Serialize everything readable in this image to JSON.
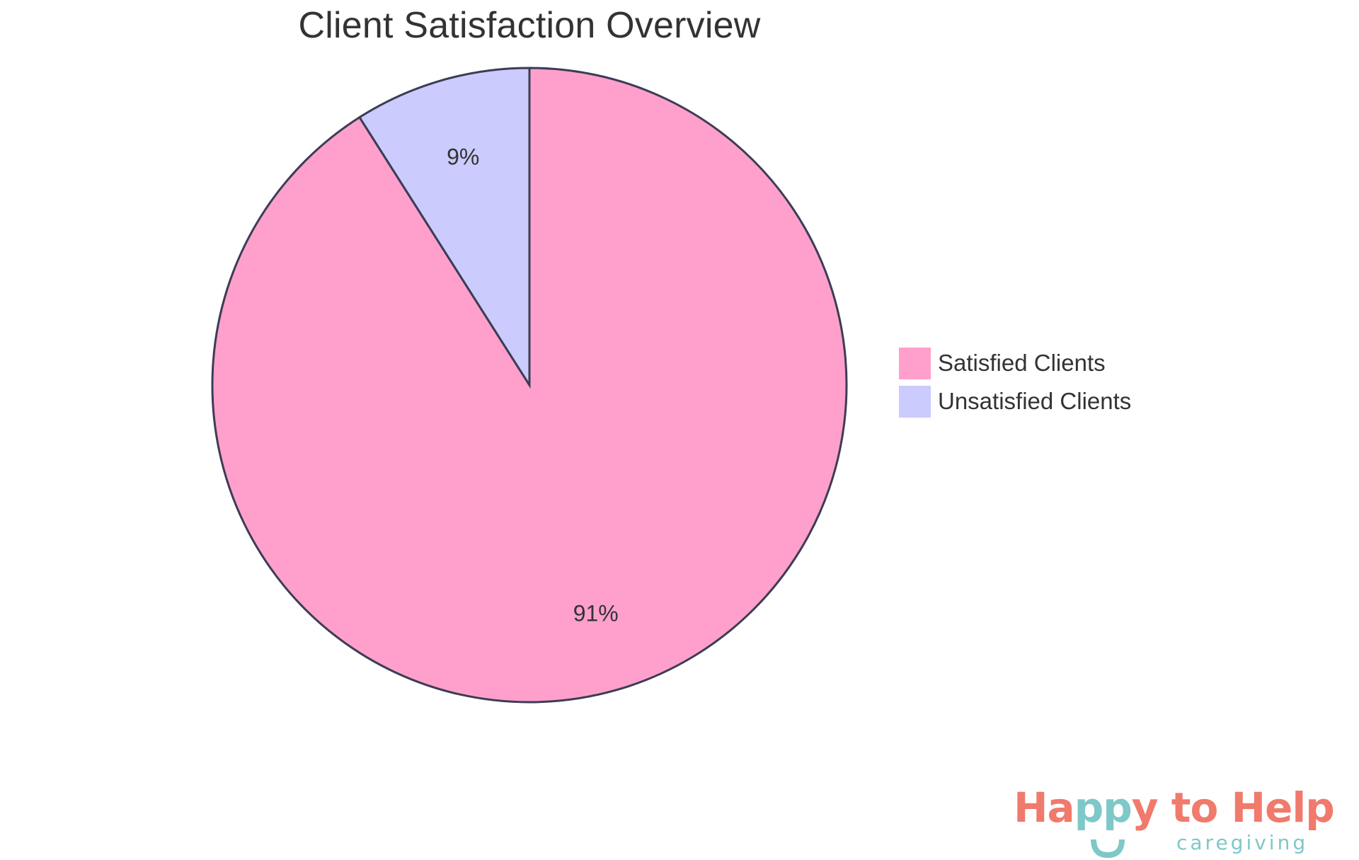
{
  "chart_data": {
    "type": "pie",
    "title": "Client Satisfaction Overview",
    "categories": [
      "Satisfied Clients",
      "Unsatisfied Clients"
    ],
    "values": [
      91,
      9
    ],
    "labels": [
      "91%",
      "9%"
    ],
    "colors": [
      "#ffa0cc",
      "#cbcbfd"
    ],
    "stroke_color": "#3c3c55",
    "legend_position": "right",
    "start_angle": "12 o'clock, counterclockwise"
  },
  "legend": {
    "items": [
      {
        "label": "Satisfied Clients",
        "color": "#ffa0cc"
      },
      {
        "label": "Unsatisfied Clients",
        "color": "#cbcbfd"
      }
    ]
  },
  "logo": {
    "part1": "Ha",
    "part2": "pp",
    "part3": "y to Help",
    "subtitle": "caregiving",
    "coral": "#f07a6c",
    "teal": "#7ec8c8"
  }
}
